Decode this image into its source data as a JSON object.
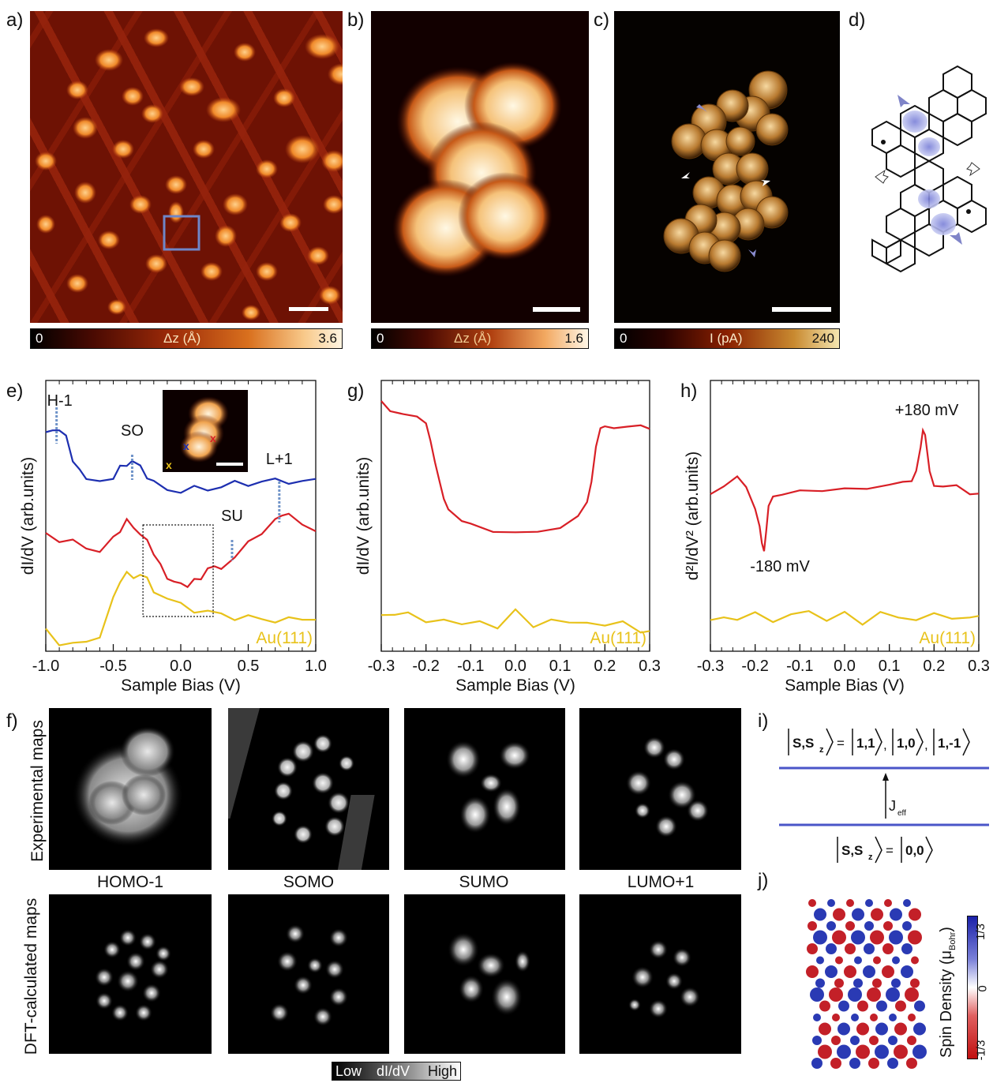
{
  "panels": {
    "a": "a)",
    "b": "b)",
    "c": "c)",
    "d": "d)",
    "e": "e)",
    "f": "f)",
    "g": "g)",
    "h": "h)",
    "i": "i)",
    "j": "j)"
  },
  "colorbars": {
    "a": {
      "min": "0",
      "label": "Δz (Å)",
      "max": "3.6"
    },
    "b": {
      "min": "0",
      "label": "Δz (Å)",
      "max": "1.6"
    },
    "c": {
      "min": "0",
      "label": "I (pA)",
      "max": "240"
    }
  },
  "colors": {
    "blue_trace": "#1d2fb0",
    "red_trace": "#d81f26",
    "yellow_trace": "#e8c21a",
    "level_line": "#4a55c8",
    "marker_dotted": "#6f93c8"
  },
  "chart_data": [
    {
      "panel": "e",
      "type": "line",
      "xlabel": "Sample Bias (V)",
      "ylabel": "dI/dV (arb.units)",
      "xticks": [
        "-1.0",
        "-0.5",
        "0.0",
        "0.5",
        "1.0"
      ],
      "xlim": [
        -1.0,
        1.0
      ],
      "annotations": [
        "H-1",
        "SO",
        "SU",
        "L+1"
      ],
      "annotation_x": [
        -0.92,
        -0.36,
        0.38,
        0.73
      ],
      "inset_marks": [
        "x",
        "x",
        "x"
      ],
      "substrate_label": "Au(111)",
      "series": [
        {
          "color": "blue",
          "x": [
            -1.0,
            -0.95,
            -0.9,
            -0.85,
            -0.8,
            -0.75,
            -0.7,
            -0.6,
            -0.5,
            -0.45,
            -0.4,
            -0.36,
            -0.3,
            -0.25,
            -0.2,
            -0.1,
            0.0,
            0.1,
            0.2,
            0.3,
            0.4,
            0.5,
            0.6,
            0.7,
            0.8,
            0.9,
            1.0
          ],
          "y": [
            0.84,
            0.85,
            0.86,
            0.82,
            0.74,
            0.69,
            0.66,
            0.64,
            0.67,
            0.7,
            0.72,
            0.73,
            0.71,
            0.67,
            0.64,
            0.62,
            0.61,
            0.62,
            0.62,
            0.63,
            0.64,
            0.64,
            0.65,
            0.65,
            0.65,
            0.65,
            0.65
          ]
        },
        {
          "color": "red",
          "x": [
            -1.0,
            -0.9,
            -0.8,
            -0.7,
            -0.6,
            -0.5,
            -0.45,
            -0.4,
            -0.35,
            -0.3,
            -0.25,
            -0.2,
            -0.15,
            -0.1,
            -0.05,
            0.0,
            0.05,
            0.1,
            0.15,
            0.2,
            0.25,
            0.3,
            0.4,
            0.5,
            0.6,
            0.7,
            0.75,
            0.8,
            0.9,
            1.0
          ],
          "y": [
            0.44,
            0.42,
            0.41,
            0.38,
            0.38,
            0.42,
            0.46,
            0.49,
            0.47,
            0.44,
            0.41,
            0.37,
            0.31,
            0.27,
            0.25,
            0.24,
            0.24,
            0.25,
            0.27,
            0.3,
            0.31,
            0.31,
            0.35,
            0.4,
            0.45,
            0.5,
            0.52,
            0.51,
            0.48,
            0.46
          ]
        },
        {
          "color": "yellow",
          "x": [
            -1.0,
            -0.9,
            -0.8,
            -0.7,
            -0.6,
            -0.5,
            -0.45,
            -0.4,
            -0.35,
            -0.3,
            -0.25,
            -0.2,
            -0.1,
            0.0,
            0.1,
            0.2,
            0.3,
            0.4,
            0.5,
            0.6,
            0.7,
            0.8,
            0.9,
            1.0
          ],
          "y": [
            0.06,
            0.01,
            0.0,
            0.01,
            0.04,
            0.18,
            0.26,
            0.28,
            0.27,
            0.28,
            0.26,
            0.22,
            0.18,
            0.16,
            0.14,
            0.13,
            0.12,
            0.11,
            0.11,
            0.1,
            0.1,
            0.1,
            0.1,
            0.11
          ]
        }
      ]
    },
    {
      "panel": "g",
      "type": "line",
      "xlabel": "Sample Bias (V)",
      "ylabel": "dI/dV (arb.units)",
      "xticks": [
        "-0.3",
        "-0.2",
        "-0.1",
        "0.0",
        "0.1",
        "0.2",
        "0.3"
      ],
      "xlim": [
        -0.3,
        0.3
      ],
      "substrate_label": "Au(111)",
      "series": [
        {
          "color": "red",
          "x": [
            -0.3,
            -0.28,
            -0.25,
            -0.22,
            -0.2,
            -0.19,
            -0.18,
            -0.17,
            -0.16,
            -0.15,
            -0.12,
            -0.1,
            -0.05,
            0.0,
            0.05,
            0.1,
            0.14,
            0.16,
            0.17,
            0.18,
            0.19,
            0.2,
            0.22,
            0.25,
            0.28,
            0.3
          ],
          "y": [
            0.97,
            0.94,
            0.91,
            0.9,
            0.89,
            0.82,
            0.72,
            0.64,
            0.58,
            0.55,
            0.49,
            0.47,
            0.46,
            0.44,
            0.45,
            0.47,
            0.5,
            0.57,
            0.66,
            0.79,
            0.85,
            0.86,
            0.87,
            0.87,
            0.86,
            0.86
          ]
        },
        {
          "color": "yellow",
          "x": [
            -0.3,
            -0.27,
            -0.24,
            -0.2,
            -0.16,
            -0.12,
            -0.08,
            -0.04,
            0.0,
            0.04,
            0.08,
            0.12,
            0.16,
            0.2,
            0.24,
            0.28,
            0.3
          ],
          "y": [
            0.12,
            0.13,
            0.12,
            0.09,
            0.11,
            0.07,
            0.1,
            0.07,
            0.13,
            0.08,
            0.1,
            0.08,
            0.1,
            0.07,
            0.09,
            0.06,
            0.05
          ]
        }
      ]
    },
    {
      "panel": "h",
      "type": "line",
      "xlabel": "Sample Bias (V)",
      "ylabel": "d²I/dV² (arb.units)",
      "xticks": [
        "-0.3",
        "-0.2",
        "-0.1",
        "0.0",
        "0.1",
        "0.2",
        "0.3"
      ],
      "xlim": [
        -0.3,
        0.3
      ],
      "peak_labels": [
        "+180 mV",
        "-180 mV"
      ],
      "peak_x": [
        0.18,
        -0.18
      ],
      "substrate_label": "Au(111)",
      "series": [
        {
          "color": "red",
          "x": [
            -0.3,
            -0.27,
            -0.24,
            -0.22,
            -0.2,
            -0.19,
            -0.185,
            -0.18,
            -0.175,
            -0.17,
            -0.16,
            -0.14,
            -0.1,
            -0.05,
            0.0,
            0.05,
            0.1,
            0.13,
            0.15,
            0.16,
            0.17,
            0.175,
            0.18,
            0.19,
            0.2,
            0.22,
            0.25,
            0.28,
            0.3
          ],
          "y": [
            0.6,
            0.64,
            0.66,
            0.62,
            0.55,
            0.48,
            0.4,
            0.36,
            0.45,
            0.56,
            0.6,
            0.59,
            0.61,
            0.62,
            0.61,
            0.63,
            0.63,
            0.64,
            0.66,
            0.7,
            0.78,
            0.84,
            0.83,
            0.7,
            0.64,
            0.62,
            0.63,
            0.61,
            0.6
          ]
        },
        {
          "color": "yellow",
          "x": [
            -0.3,
            -0.27,
            -0.24,
            -0.2,
            -0.16,
            -0.12,
            -0.08,
            -0.04,
            0.0,
            0.04,
            0.08,
            0.12,
            0.16,
            0.2,
            0.24,
            0.28,
            0.3
          ],
          "y": [
            0.1,
            0.12,
            0.09,
            0.13,
            0.1,
            0.11,
            0.14,
            0.1,
            0.12,
            0.09,
            0.13,
            0.1,
            0.11,
            0.12,
            0.1,
            0.12,
            0.11
          ]
        }
      ]
    }
  ],
  "panel_f": {
    "row_labels": [
      "Experimental maps",
      "DFT-calculated maps"
    ],
    "titles": [
      "HOMO-1",
      "SOMO",
      "SUMO",
      "LUMO+1"
    ],
    "scale": {
      "low": "Low",
      "mid": "dI/dV",
      "high": "High"
    }
  },
  "panel_i": {
    "top": {
      "lhs": "S,S",
      "sub": "z",
      "eq": "=",
      "k1": "1,1",
      "k2": "1,0",
      "k3": "1,-1",
      "comma": ","
    },
    "bottom": {
      "lhs": "S,S",
      "sub": "z",
      "eq": "=",
      "k": "0,0"
    },
    "coupling": "J",
    "coupling_sub": "eff"
  },
  "panel_j": {
    "axis_label": "Spin Density (μ",
    "axis_sub": "Bohr",
    "axis_close": ")",
    "ticks": [
      "1/3",
      "0",
      "-1/3"
    ]
  }
}
